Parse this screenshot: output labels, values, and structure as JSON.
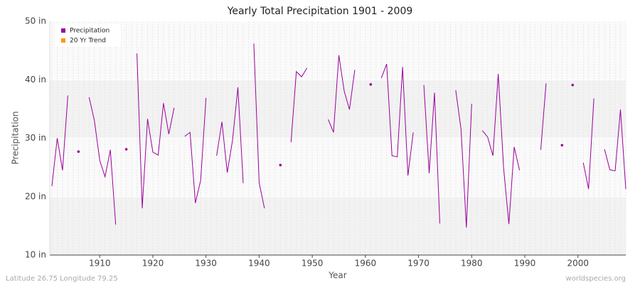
{
  "chart_data": {
    "type": "line",
    "title": "Yearly Total Precipitation 1901 - 2009",
    "x_label": "Year",
    "y_label": "Precipitation",
    "footer_left": "Latitude 26.75 Longitude 79.25",
    "footer_right": "worldspecies.org",
    "x": [
      1901,
      1902,
      1903,
      1904,
      1905,
      1906,
      1907,
      1908,
      1909,
      1910,
      1911,
      1912,
      1913,
      1914,
      1915,
      1916,
      1917,
      1918,
      1919,
      1920,
      1921,
      1922,
      1923,
      1924,
      1925,
      1926,
      1927,
      1928,
      1929,
      1930,
      1931,
      1932,
      1933,
      1934,
      1935,
      1936,
      1937,
      1938,
      1939,
      1940,
      1941,
      1942,
      1943,
      1944,
      1945,
      1946,
      1947,
      1948,
      1949,
      1950,
      1951,
      1952,
      1953,
      1954,
      1955,
      1956,
      1957,
      1958,
      1959,
      1960,
      1961,
      1962,
      1963,
      1964,
      1965,
      1966,
      1967,
      1968,
      1969,
      1970,
      1971,
      1972,
      1973,
      1974,
      1975,
      1976,
      1977,
      1978,
      1979,
      1980,
      1981,
      1982,
      1983,
      1984,
      1985,
      1986,
      1987,
      1988,
      1989,
      1990,
      1991,
      1992,
      1993,
      1994,
      1995,
      1996,
      1997,
      1998,
      1999,
      2000,
      2001,
      2002,
      2003,
      2004,
      2005,
      2006,
      2007,
      2008,
      2009
    ],
    "series": [
      {
        "name": "Precipitation",
        "color": "#990099",
        "values": [
          21.8,
          30.0,
          24.5,
          37.3,
          null,
          27.7,
          null,
          37.0,
          33.0,
          26.2,
          23.4,
          28.0,
          15.2,
          null,
          28.1,
          null,
          44.5,
          18.0,
          33.3,
          27.6,
          27.1,
          36.0,
          30.7,
          35.2,
          null,
          30.3,
          31.0,
          18.9,
          22.8,
          36.9,
          null,
          27.0,
          32.8,
          24.1,
          29.7,
          38.7,
          22.3,
          null,
          46.2,
          22.4,
          18.0,
          null,
          null,
          25.4,
          null,
          29.3,
          41.4,
          40.5,
          42.0,
          null,
          null,
          null,
          33.2,
          31.0,
          44.2,
          38.1,
          34.9,
          41.7,
          null,
          null,
          39.2,
          null,
          40.3,
          42.7,
          27.0,
          26.8,
          42.2,
          23.6,
          31.0,
          null,
          39.1,
          24.0,
          37.8,
          15.4,
          null,
          null,
          38.2,
          31.5,
          14.7,
          35.9,
          null,
          31.3,
          30.2,
          27.0,
          41.0,
          25.0,
          15.3,
          28.5,
          24.5,
          null,
          null,
          null,
          28.0,
          39.4,
          null,
          null,
          28.8,
          null,
          39.1,
          null,
          25.8,
          21.3,
          36.8,
          null,
          28.1,
          24.6,
          24.4,
          34.9,
          21.3
        ]
      },
      {
        "name": "20 Yr Trend",
        "color": "#ff9900",
        "values": [
          null,
          null,
          null,
          null,
          null,
          null,
          null,
          null,
          null,
          null,
          null,
          null,
          null,
          null,
          null,
          null,
          null,
          null,
          null,
          null,
          null,
          null,
          null,
          null,
          null,
          null,
          null,
          null,
          null,
          null,
          null,
          null,
          null,
          null,
          null,
          null,
          null,
          null,
          null,
          null,
          null,
          null,
          null,
          null,
          null,
          null,
          null,
          null,
          null,
          null,
          null,
          null,
          null,
          null,
          null,
          null,
          null,
          null,
          null,
          null,
          null,
          null,
          null,
          null,
          null,
          null,
          null,
          null,
          null,
          null,
          null,
          null,
          null,
          null,
          null,
          null,
          null,
          null,
          null,
          null,
          null,
          null,
          null,
          null,
          null,
          null,
          null,
          null,
          null,
          null,
          null,
          null,
          null,
          null,
          null,
          null,
          null,
          null,
          null,
          null,
          null,
          null,
          null,
          null,
          null,
          null,
          null,
          null,
          null
        ]
      }
    ],
    "xlim": [
      1900.6,
      2009
    ],
    "xticks": [
      1910,
      1920,
      1930,
      1940,
      1950,
      1960,
      1970,
      1980,
      1990,
      2000
    ],
    "ylim": [
      10,
      50
    ],
    "yticks": [
      {
        "value": 10,
        "label": "10 in"
      },
      {
        "value": 20,
        "label": "20 in"
      },
      {
        "value": 30,
        "label": "30 in"
      },
      {
        "value": 40,
        "label": "40 in"
      },
      {
        "value": 50,
        "label": "50 in"
      }
    ],
    "grid": true,
    "legend": "upper left"
  }
}
